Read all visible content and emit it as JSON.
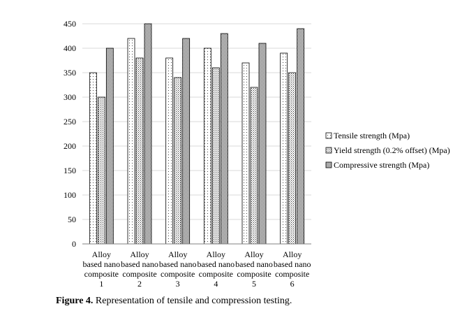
{
  "chart_data": {
    "type": "bar",
    "categories": [
      [
        "Alloy",
        "based nano",
        "composite",
        "1"
      ],
      [
        "Alloy",
        "based nano",
        "composite",
        "2"
      ],
      [
        "Alloy",
        "based nano",
        "composite",
        "3"
      ],
      [
        "Alloy",
        "based nano",
        "composite",
        "4"
      ],
      [
        "Alloy",
        "based nano",
        "composite",
        "5"
      ],
      [
        "Alloy",
        "based nano",
        "composite",
        "6"
      ]
    ],
    "series": [
      {
        "name": "Tensile strength (Mpa)",
        "values": [
          350,
          420,
          380,
          400,
          370,
          390
        ],
        "pattern": "dots-sparse"
      },
      {
        "name": "Yield strength (0.2% offset) (Mpa)",
        "values": [
          300,
          380,
          340,
          360,
          320,
          350
        ],
        "pattern": "dots-dense"
      },
      {
        "name": "Compressive strength (Mpa)",
        "values": [
          400,
          450,
          420,
          430,
          410,
          440
        ],
        "pattern": "checker"
      }
    ],
    "ylim": [
      0,
      450
    ],
    "yticks": [
      0,
      50,
      100,
      150,
      200,
      250,
      300,
      350,
      400,
      450
    ],
    "grid": true,
    "legend_position": "right"
  },
  "caption": {
    "label": "Figure 4.",
    "text": " Representation of tensile and compression testing."
  }
}
